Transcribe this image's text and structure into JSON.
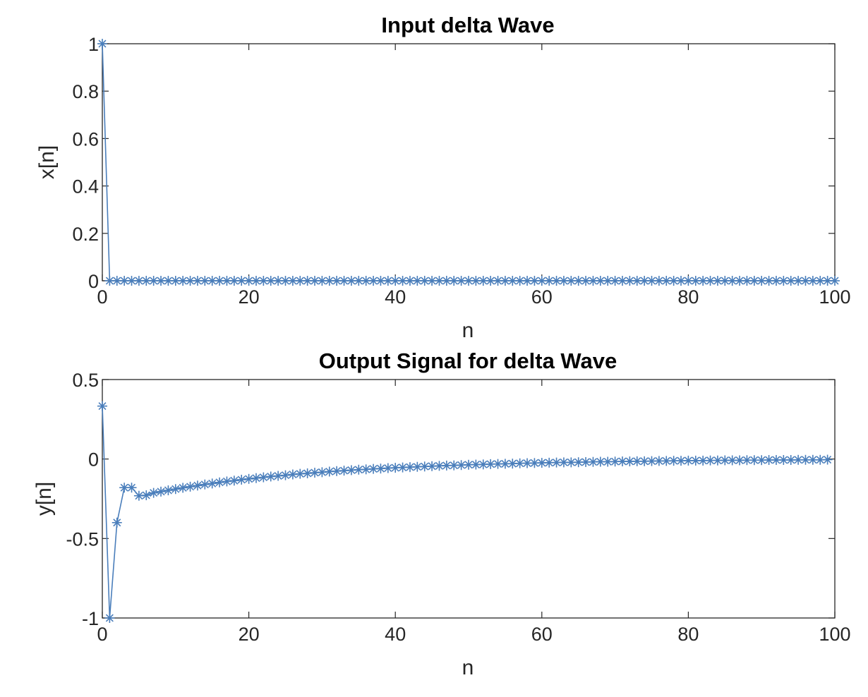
{
  "chart_data": [
    {
      "type": "line",
      "title": "Input delta Wave",
      "xlabel": "n",
      "ylabel": "x[n]",
      "xlim": [
        0,
        100
      ],
      "ylim": [
        0,
        1
      ],
      "xticks": [
        "0",
        "20",
        "40",
        "60",
        "80",
        "100"
      ],
      "yticks": [
        "0",
        "0.2",
        "0.4",
        "0.6",
        "0.8",
        "1"
      ],
      "marker": "asterisk",
      "color": "#4a7ebb",
      "series": [
        {
          "x": [
            0,
            1,
            2,
            3,
            4,
            5,
            6,
            7,
            8,
            9,
            10,
            11,
            12,
            13,
            14,
            15,
            16,
            17,
            18,
            19,
            20,
            21,
            22,
            23,
            24,
            25,
            26,
            27,
            28,
            29,
            30,
            31,
            32,
            33,
            34,
            35,
            36,
            37,
            38,
            39,
            40,
            41,
            42,
            43,
            44,
            45,
            46,
            47,
            48,
            49,
            50,
            51,
            52,
            53,
            54,
            55,
            56,
            57,
            58,
            59,
            60,
            61,
            62,
            63,
            64,
            65,
            66,
            67,
            68,
            69,
            70,
            71,
            72,
            73,
            74,
            75,
            76,
            77,
            78,
            79,
            80,
            81,
            82,
            83,
            84,
            85,
            86,
            87,
            88,
            89,
            90,
            91,
            92,
            93,
            94,
            95,
            96,
            97,
            98,
            99,
            100
          ],
          "values": [
            1,
            0,
            0,
            0,
            0,
            0,
            0,
            0,
            0,
            0,
            0,
            0,
            0,
            0,
            0,
            0,
            0,
            0,
            0,
            0,
            0,
            0,
            0,
            0,
            0,
            0,
            0,
            0,
            0,
            0,
            0,
            0,
            0,
            0,
            0,
            0,
            0,
            0,
            0,
            0,
            0,
            0,
            0,
            0,
            0,
            0,
            0,
            0,
            0,
            0,
            0,
            0,
            0,
            0,
            0,
            0,
            0,
            0,
            0,
            0,
            0,
            0,
            0,
            0,
            0,
            0,
            0,
            0,
            0,
            0,
            0,
            0,
            0,
            0,
            0,
            0,
            0,
            0,
            0,
            0,
            0,
            0,
            0,
            0,
            0,
            0,
            0,
            0,
            0,
            0,
            0,
            0,
            0,
            0,
            0,
            0,
            0,
            0,
            0,
            0,
            0
          ]
        }
      ]
    },
    {
      "type": "line",
      "title": "Output Signal for delta Wave",
      "xlabel": "n",
      "ylabel": "y[n]",
      "xlim": [
        0,
        100
      ],
      "ylim": [
        -1,
        0.5
      ],
      "xticks": [
        "0",
        "20",
        "40",
        "60",
        "80",
        "100"
      ],
      "yticks": [
        "-1",
        "-0.5",
        "0",
        "0.5"
      ],
      "marker": "asterisk",
      "color": "#4a7ebb",
      "series": [
        {
          "x": [
            0,
            1,
            2,
            3,
            4,
            5,
            6,
            7,
            8,
            9,
            10,
            11,
            12,
            13,
            14,
            15,
            16,
            17,
            18,
            19,
            20,
            21,
            22,
            23,
            24,
            25,
            26,
            27,
            28,
            29,
            30,
            31,
            32,
            33,
            34,
            35,
            36,
            37,
            38,
            39,
            40,
            41,
            42,
            43,
            44,
            45,
            46,
            47,
            48,
            49,
            50,
            51,
            52,
            53,
            54,
            55,
            56,
            57,
            58,
            59,
            60,
            61,
            62,
            63,
            64,
            65,
            66,
            67,
            68,
            69,
            70,
            71,
            72,
            73,
            74,
            75,
            76,
            77,
            78,
            79,
            80,
            81,
            82,
            83,
            84,
            85,
            86,
            87,
            88,
            89,
            90,
            91,
            92,
            93,
            94,
            95,
            96,
            97,
            98,
            99
          ],
          "values": [
            0.333,
            -1.0,
            -0.4,
            -0.18,
            -0.18,
            -0.231,
            -0.228,
            -0.213,
            -0.205,
            -0.197,
            -0.189,
            -0.181,
            -0.174,
            -0.167,
            -0.16,
            -0.154,
            -0.147,
            -0.141,
            -0.136,
            -0.13,
            -0.125,
            -0.12,
            -0.115,
            -0.11,
            -0.106,
            -0.102,
            -0.097,
            -0.093,
            -0.09,
            -0.086,
            -0.083,
            -0.079,
            -0.076,
            -0.073,
            -0.07,
            -0.067,
            -0.065,
            -0.062,
            -0.06,
            -0.057,
            -0.055,
            -0.053,
            -0.051,
            -0.049,
            -0.047,
            -0.045,
            -0.043,
            -0.041,
            -0.04,
            -0.038,
            -0.036,
            -0.035,
            -0.034,
            -0.032,
            -0.031,
            -0.03,
            -0.029,
            -0.027,
            -0.026,
            -0.025,
            -0.024,
            -0.023,
            -0.022,
            -0.021,
            -0.021,
            -0.02,
            -0.019,
            -0.018,
            -0.017,
            -0.017,
            -0.016,
            -0.015,
            -0.015,
            -0.014,
            -0.014,
            -0.013,
            -0.012,
            -0.012,
            -0.011,
            -0.011,
            -0.01,
            -0.01,
            -0.01,
            -0.009,
            -0.009,
            -0.008,
            -0.008,
            -0.008,
            -0.007,
            -0.007,
            -0.007,
            -0.006,
            -0.006,
            -0.006,
            -0.006,
            -0.005,
            -0.005,
            -0.005,
            -0.005,
            -0.004
          ]
        }
      ]
    }
  ]
}
